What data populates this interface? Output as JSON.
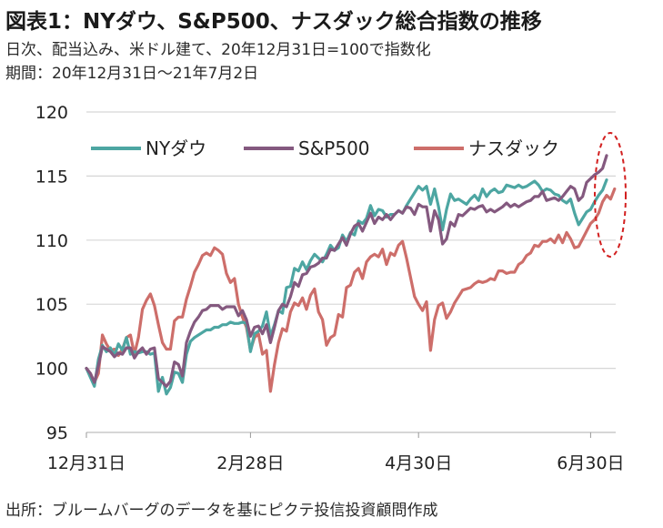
{
  "header": {
    "title": "図表1：NYダウ、S&P500、ナスダック総合指数の推移",
    "subtitle1": "日次、配当込み、米ドル建て、20年12月31日=100で指数化",
    "subtitle2": "期間：20年12月31日～21年7月2日"
  },
  "footer": {
    "source": "出所：ブルームバーグのデータを基にピクテ投信投資顧問作成"
  },
  "colors": {
    "dow": "#4da6a2",
    "sp500": "#84597f",
    "nasdaq": "#cd6e6a",
    "highlight": "#d21f1f",
    "grid": "#d6d6d6"
  },
  "chart_data": {
    "type": "line",
    "title": "",
    "xlabel": "",
    "ylabel": "",
    "ylim": [
      95,
      120
    ],
    "yticks": [
      "95",
      "100",
      "105",
      "110",
      "115",
      "120"
    ],
    "xtick_labels": [
      "12月31日",
      "2月28日",
      "4月30日",
      "6月30日"
    ],
    "xtick_index": [
      0,
      41,
      83,
      126
    ],
    "grid": "horizontal",
    "legend_position": "top",
    "annotation": "red dashed ellipse around latest values",
    "series": [
      {
        "name": "NYダウ",
        "values": [
          100.0,
          99.3,
          98.6,
          100.7,
          101.8,
          101.3,
          101.6,
          101.0,
          101.9,
          101.4,
          102.4,
          101.1,
          101.3,
          101.2,
          101.3,
          101.3,
          101.1,
          101.2,
          98.2,
          99.3,
          98.0,
          98.5,
          99.7,
          99.6,
          98.9,
          101.1,
          102.1,
          102.4,
          102.6,
          102.8,
          103.0,
          103.0,
          103.2,
          103.2,
          103.4,
          103.4,
          103.6,
          103.5,
          103.5,
          103.6,
          103.5,
          101.3,
          102.7,
          102.9,
          103.3,
          104.4,
          102.5,
          103.4,
          104.5,
          104.3,
          106.3,
          106.4,
          107.8,
          107.6,
          108.3,
          107.7,
          108.4,
          108.9,
          108.6,
          108.3,
          108.9,
          109.6,
          109.2,
          109.4,
          110.4,
          109.9,
          110.6,
          110.4,
          111.5,
          111.3,
          111.7,
          112.7,
          111.9,
          112.4,
          112.3,
          111.8,
          112.0,
          112.0,
          112.3,
          112.1,
          112.7,
          113.2,
          113.7,
          114.2,
          113.9,
          114.2,
          112.8,
          114.0,
          112.6,
          110.8,
          112.4,
          113.6,
          113.1,
          113.2,
          113.0,
          112.8,
          113.2,
          113.5,
          113.1,
          114.0,
          113.4,
          113.8,
          114.0,
          113.7,
          113.8,
          114.3,
          114.2,
          114.1,
          114.3,
          114.1,
          114.2,
          114.4,
          114.6,
          114.3,
          113.8,
          114.0,
          113.9,
          113.6,
          113.5,
          113.1,
          112.9,
          113.2,
          112.1,
          111.2,
          111.7,
          112.2,
          112.4,
          113.0,
          113.5,
          113.9,
          114.7
        ]
      },
      {
        "name": "S&P500",
        "values": [
          100.0,
          99.6,
          98.9,
          100.2,
          101.7,
          101.5,
          101.3,
          100.9,
          101.2,
          101.1,
          101.6,
          101.6,
          100.8,
          101.3,
          101.6,
          101.1,
          101.5,
          101.6,
          99.2,
          98.9,
          98.6,
          99.0,
          100.5,
          100.3,
          99.4,
          102.0,
          102.9,
          103.6,
          104.0,
          104.5,
          104.6,
          104.9,
          104.9,
          104.9,
          104.6,
          104.8,
          104.8,
          104.8,
          104.1,
          104.5,
          103.8,
          102.5,
          103.2,
          103.3,
          102.7,
          103.4,
          102.0,
          103.2,
          104.5,
          105.0,
          104.8,
          105.6,
          106.7,
          106.4,
          107.3,
          107.4,
          107.9,
          108.0,
          108.2,
          108.6,
          108.6,
          109.3,
          109.2,
          109.7,
          110.2,
          109.6,
          110.5,
          111.1,
          111.3,
          110.7,
          111.4,
          112.1,
          111.3,
          111.8,
          111.6,
          112.0,
          111.6,
          112.0,
          112.3,
          112.1,
          112.6,
          112.5,
          112.0,
          112.8,
          112.6,
          112.6,
          110.7,
          112.3,
          111.6,
          109.7,
          110.1,
          111.4,
          111.1,
          112.0,
          111.9,
          112.2,
          112.5,
          112.4,
          112.6,
          112.7,
          112.2,
          112.4,
          112.2,
          112.4,
          112.6,
          112.9,
          112.6,
          112.8,
          112.6,
          112.8,
          113.0,
          113.1,
          113.4,
          113.4,
          113.8,
          113.1,
          113.2,
          113.3,
          113.1,
          113.4,
          113.8,
          114.2,
          114.0,
          113.1,
          113.4,
          114.5,
          114.8,
          115.1,
          115.3,
          115.6,
          116.6
        ]
      },
      {
        "name": "ナスダック",
        "values": [
          100.0,
          99.6,
          98.9,
          99.6,
          102.6,
          101.9,
          101.4,
          101.5,
          101.0,
          101.5,
          102.4,
          102.6,
          101.1,
          102.4,
          104.6,
          105.3,
          105.8,
          104.9,
          103.4,
          102.0,
          101.5,
          101.5,
          103.7,
          104.0,
          104.0,
          105.4,
          106.4,
          107.5,
          108.1,
          108.8,
          109.0,
          108.8,
          109.4,
          109.2,
          108.9,
          107.4,
          106.7,
          107.0,
          105.0,
          104.0,
          103.2,
          101.4,
          102.4,
          102.7,
          101.1,
          101.4,
          98.2,
          100.3,
          102.0,
          103.1,
          102.9,
          104.4,
          105.1,
          104.9,
          105.5,
          104.6,
          105.7,
          106.2,
          104.4,
          103.8,
          101.8,
          102.4,
          102.6,
          104.2,
          104.0,
          106.3,
          106.5,
          107.5,
          107.8,
          107.0,
          108.3,
          108.7,
          108.9,
          108.7,
          109.3,
          108.1,
          109.0,
          108.8,
          109.6,
          109.9,
          108.6,
          107.1,
          105.6,
          105.0,
          104.5,
          105.2,
          101.4,
          103.8,
          104.9,
          105.1,
          103.9,
          104.4,
          105.1,
          105.6,
          106.1,
          106.2,
          106.3,
          106.6,
          106.8,
          106.7,
          106.8,
          107.0,
          106.9,
          107.6,
          107.6,
          107.4,
          107.5,
          107.5,
          108.1,
          108.3,
          108.8,
          109.0,
          109.6,
          109.5,
          109.9,
          109.9,
          110.1,
          109.8,
          110.4,
          109.8,
          110.6,
          110.1,
          109.4,
          109.5,
          110.1,
          110.7,
          111.3,
          111.6,
          112.1,
          113.0,
          113.5,
          113.2,
          114.0
        ]
      }
    ]
  }
}
